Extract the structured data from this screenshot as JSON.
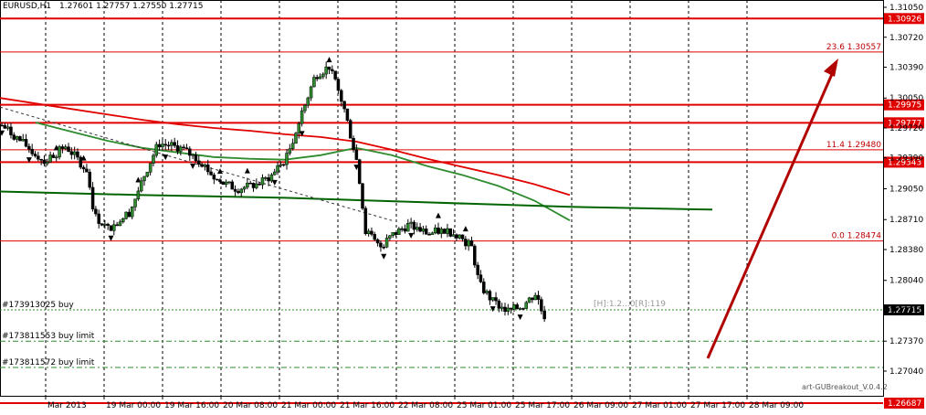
{
  "chart_data": {
    "type": "candlestick",
    "title": "EURUSD,H1  1.27601 1.27757 1.27550 1.27715",
    "symbol_line": "EURUSD,H1",
    "ohlc_line": "1.27601 1.27757 1.27550 1.27715",
    "ylim": [
      1.26687,
      1.3105
    ],
    "y_ticks": [
      "1.31050",
      "1.30720",
      "1.30390",
      "1.30050",
      "1.29720",
      "1.29390",
      "1.29050",
      "1.28710",
      "1.28380",
      "1.28040",
      "1.27710",
      "1.27370",
      "1.27040"
    ],
    "x_ticks": [
      "Mar 2013",
      "19 Mar 00:00",
      "19 Mar 16:00",
      "20 Mar 08:00",
      "21 Mar 00:00",
      "21 Mar 16:00",
      "22 Mar 08:00",
      "25 Mar 01:00",
      "25 Mar 17:00",
      "26 Mar 09:00",
      "27 Mar 01:00",
      "27 Mar 17:00",
      "28 Mar 09:00"
    ],
    "horizontal_levels": [
      {
        "price": 1.30926,
        "label": "1.30926",
        "style": "thick-red",
        "badge": true
      },
      {
        "price": 1.29975,
        "label": "1.29975",
        "style": "thick-red",
        "badge": true
      },
      {
        "price": 1.29777,
        "label": "1.29777",
        "style": "thick-red",
        "badge": true
      },
      {
        "price": 1.29343,
        "label": "1.29343",
        "style": "thick-red",
        "badge": true
      },
      {
        "price": 1.26687,
        "label": "1.26687",
        "style": "thick-red",
        "badge": true
      }
    ],
    "fibonacci": [
      {
        "price": 1.30557,
        "label": "23.6  1.30557"
      },
      {
        "price": 1.2948,
        "label": "11.4  1.29480"
      },
      {
        "price": 1.28474,
        "label": "0.0  1.28474"
      }
    ],
    "orders": [
      {
        "price": 1.27715,
        "label": "#173913025 buy",
        "style": "dotted"
      },
      {
        "price": 1.2737,
        "label": "#173811553 buy limit",
        "style": "dashdot"
      },
      {
        "price": 1.2708,
        "label": "#173811572 buy limit",
        "style": "dashdot"
      }
    ],
    "current_price": "1.27715",
    "price_overlay_text": "[H]:1.2...0[R]:119",
    "watermark": "art-GUBreakout_V.0.4.2",
    "series": [
      {
        "color": "#e00000",
        "points": [
          [
            0,
            1.3005
          ],
          [
            0.05,
            1.2999
          ],
          [
            0.1,
            1.2993
          ],
          [
            0.15,
            1.2987
          ],
          [
            0.2,
            1.2981
          ],
          [
            0.25,
            1.2976
          ],
          [
            0.3,
            1.2972
          ],
          [
            0.35,
            1.2969
          ],
          [
            0.4,
            1.2965
          ],
          [
            0.45,
            1.2962
          ],
          [
            0.5,
            1.2957
          ],
          [
            0.55,
            1.2948
          ],
          [
            0.6,
            1.2938
          ],
          [
            0.65,
            1.2929
          ],
          [
            0.7,
            1.292
          ],
          [
            0.75,
            1.291
          ],
          [
            0.8,
            1.2898
          ]
        ]
      },
      {
        "color": "#2e8b2e",
        "points": [
          [
            0.05,
            1.2978
          ],
          [
            0.1,
            1.2968
          ],
          [
            0.15,
            1.2958
          ],
          [
            0.2,
            1.295
          ],
          [
            0.25,
            1.2945
          ],
          [
            0.3,
            1.294
          ],
          [
            0.35,
            1.2938
          ],
          [
            0.4,
            1.2937
          ],
          [
            0.45,
            1.2942
          ],
          [
            0.5,
            1.295
          ],
          [
            0.55,
            1.2942
          ],
          [
            0.6,
            1.293
          ],
          [
            0.65,
            1.292
          ],
          [
            0.7,
            1.2908
          ],
          [
            0.75,
            1.2892
          ],
          [
            0.8,
            1.287
          ]
        ]
      },
      {
        "color": "#006400",
        "points": [
          [
            0,
            1.2902
          ],
          [
            0.2,
            1.2898
          ],
          [
            0.4,
            1.2895
          ],
          [
            0.6,
            1.289
          ],
          [
            0.8,
            1.2885
          ],
          [
            1.0,
            1.2882
          ]
        ]
      }
    ],
    "price_path": [
      [
        0,
        1.2975
      ],
      [
        0.03,
        1.2955
      ],
      [
        0.06,
        1.2935
      ],
      [
        0.09,
        1.2952
      ],
      [
        0.12,
        1.2925
      ],
      [
        0.13,
        1.2875
      ],
      [
        0.15,
        1.286
      ],
      [
        0.18,
        1.288
      ],
      [
        0.2,
        1.292
      ],
      [
        0.22,
        1.2955
      ],
      [
        0.25,
        1.295
      ],
      [
        0.28,
        1.2935
      ],
      [
        0.3,
        1.2915
      ],
      [
        0.33,
        1.2905
      ],
      [
        0.36,
        1.291
      ],
      [
        0.38,
        1.292
      ],
      [
        0.4,
        1.294
      ],
      [
        0.42,
        1.2985
      ],
      [
        0.44,
        1.303
      ],
      [
        0.46,
        1.304
      ],
      [
        0.48,
        1.2995
      ],
      [
        0.5,
        1.293
      ],
      [
        0.51,
        1.286
      ],
      [
        0.53,
        1.284
      ],
      [
        0.55,
        1.2855
      ],
      [
        0.57,
        1.2865
      ],
      [
        0.6,
        1.2855
      ],
      [
        0.62,
        1.286
      ],
      [
        0.64,
        1.2855
      ],
      [
        0.66,
        1.284
      ],
      [
        0.67,
        1.28
      ],
      [
        0.69,
        1.278
      ],
      [
        0.71,
        1.277
      ],
      [
        0.73,
        1.2775
      ],
      [
        0.75,
        1.279
      ],
      [
        0.76,
        1.2765
      ]
    ]
  }
}
